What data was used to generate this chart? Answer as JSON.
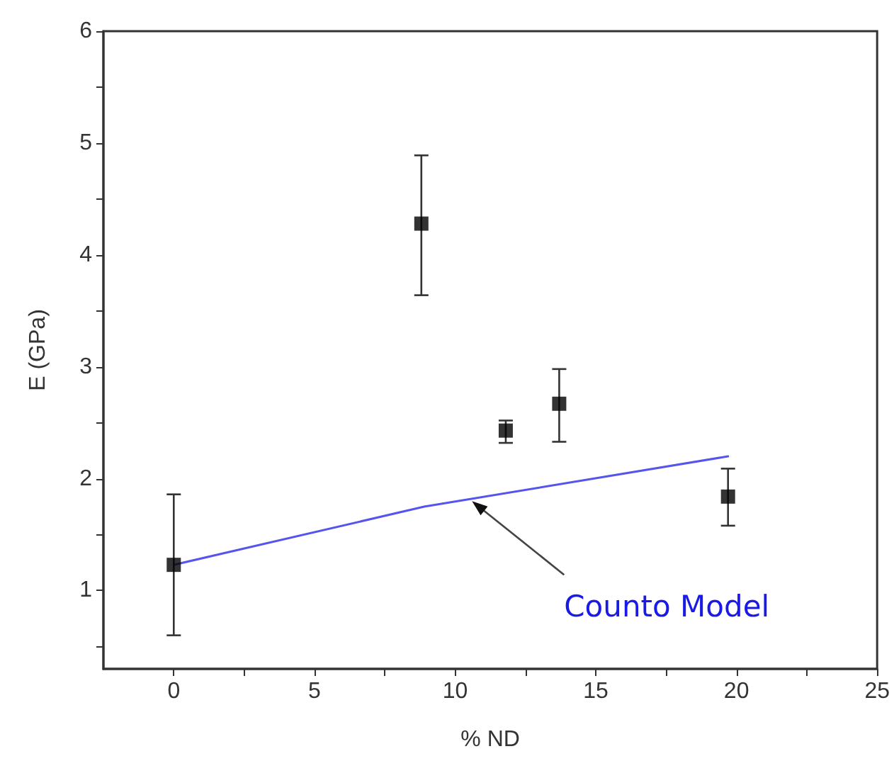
{
  "chart_data": {
    "type": "scatter",
    "xlabel": "% ND",
    "ylabel": "E (GPa)",
    "xlim": [
      -2.5,
      25
    ],
    "ylim": [
      0.3,
      6
    ],
    "xticks": [
      0,
      {
        "value": 2.5,
        "label": null
      },
      5,
      {
        "value": 7.5,
        "label": null
      },
      10,
      {
        "value": 12.5,
        "label": null
      },
      15,
      {
        "value": 17.5,
        "label": null
      },
      20,
      {
        "value": 22.5,
        "label": null
      },
      25
    ],
    "yticks": [
      {
        "value": 0.5,
        "label": null
      },
      1,
      {
        "value": 1.5,
        "label": null
      },
      2,
      {
        "value": 2.5,
        "label": null
      },
      3,
      {
        "value": 3.5,
        "label": null
      },
      4,
      {
        "value": 4.5,
        "label": null
      },
      5,
      {
        "value": 5.5,
        "label": null
      },
      6
    ],
    "grid": false,
    "series": [
      {
        "color": "#000000",
        "marker": "square",
        "x": [
          0,
          8.8,
          11.8,
          13.7,
          19.7
        ],
        "values": [
          1.23,
          4.28,
          2.43,
          2.67,
          1.84
        ],
        "errors": [
          [
            0.6,
            1.86
          ],
          [
            3.64,
            4.89
          ],
          [
            2.32,
            2.52
          ],
          [
            2.33,
            2.98
          ],
          [
            1.58,
            2.09
          ]
        ]
      },
      {
        "type": "line",
        "color": "#5555ee",
        "marker": "none",
        "line_style": "solid",
        "x": [
          0,
          8.9,
          19.7
        ],
        "values": [
          1.23,
          1.75,
          2.2
        ]
      }
    ],
    "annotations": [
      {
        "text": "Counto Model",
        "x": 10.6,
        "y": 1.8
      }
    ]
  }
}
